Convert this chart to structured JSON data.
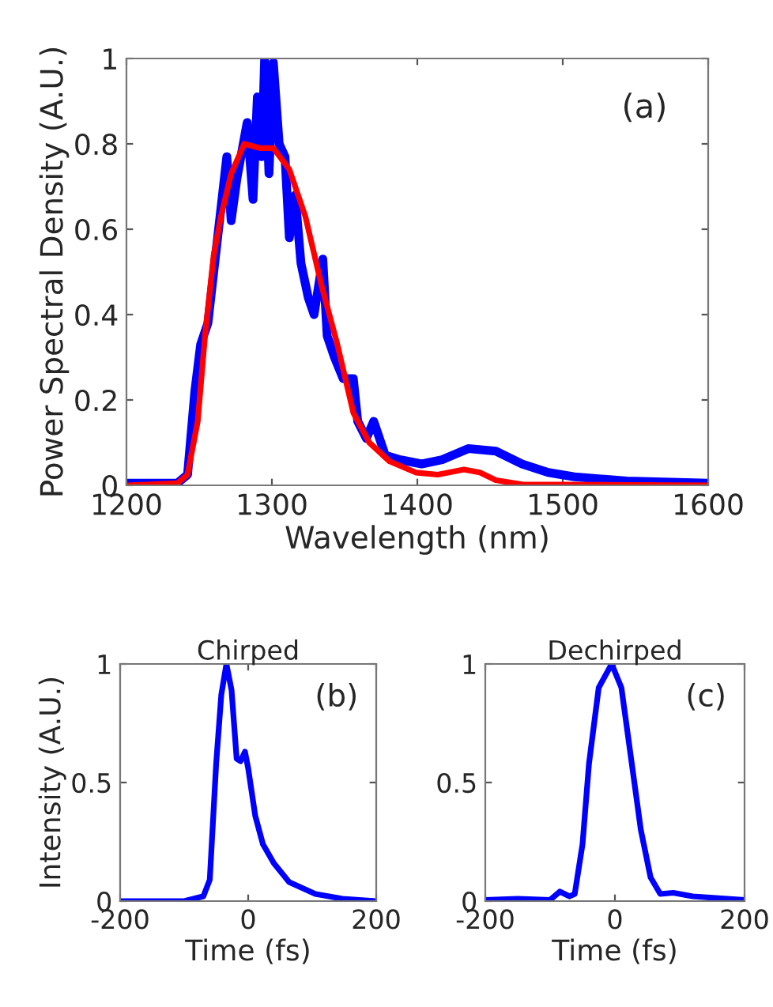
{
  "chart_data": [
    {
      "type": "line",
      "xlabel": "Wavelength (nm)",
      "ylabel": "Power Spectral Density (A.U.)",
      "annotations": [
        "(a)"
      ],
      "xlim": [
        1200,
        1600
      ],
      "ylim": [
        0,
        1
      ],
      "xticks": [
        1200,
        1300,
        1400,
        1500,
        1600
      ],
      "yticks": [
        0,
        0.2,
        0.4,
        0.6,
        0.8,
        1
      ],
      "grid": false,
      "legend": false,
      "line_style": "solid",
      "series": [
        {
          "color": "#0000ff",
          "x": [
            1200,
            1220,
            1235,
            1242,
            1247,
            1251,
            1256,
            1263,
            1269,
            1272,
            1276,
            1283,
            1287,
            1290,
            1293,
            1295,
            1298,
            1301,
            1305,
            1309,
            1312,
            1316,
            1320,
            1325,
            1329,
            1335,
            1338,
            1343,
            1349,
            1356,
            1359,
            1365,
            1370,
            1378,
            1388,
            1403,
            1417,
            1435,
            1454,
            1472,
            1490,
            1508,
            1544,
            1600
          ],
          "values": [
            0.005,
            0.005,
            0.005,
            0.025,
            0.22,
            0.33,
            0.38,
            0.59,
            0.77,
            0.62,
            0.72,
            0.85,
            0.67,
            0.91,
            0.77,
            1.0,
            0.73,
            0.99,
            0.8,
            0.77,
            0.58,
            0.68,
            0.52,
            0.44,
            0.4,
            0.53,
            0.35,
            0.3,
            0.25,
            0.25,
            0.15,
            0.11,
            0.15,
            0.07,
            0.06,
            0.05,
            0.06,
            0.086,
            0.08,
            0.05,
            0.03,
            0.02,
            0.01,
            0.005
          ]
        },
        {
          "color": "#ff0000",
          "x": [
            1200,
            1235,
            1242,
            1249,
            1254,
            1260,
            1265,
            1272,
            1281,
            1292,
            1301,
            1312,
            1323,
            1334,
            1345,
            1356,
            1367,
            1381,
            1399,
            1414,
            1432,
            1443,
            1454,
            1472,
            1600
          ],
          "values": [
            0,
            0.005,
            0.025,
            0.15,
            0.35,
            0.54,
            0.63,
            0.73,
            0.8,
            0.79,
            0.79,
            0.74,
            0.63,
            0.47,
            0.33,
            0.17,
            0.1,
            0.056,
            0.03,
            0.025,
            0.037,
            0.03,
            0.012,
            0.002,
            0
          ]
        }
      ]
    },
    {
      "type": "line",
      "title": "Chirped",
      "xlabel": "Time (fs)",
      "ylabel": "Intensity (A.U.)",
      "annotations": [
        "(b)"
      ],
      "xlim": [
        -200,
        200
      ],
      "ylim": [
        0,
        1
      ],
      "xticks": [
        -200,
        0,
        200
      ],
      "yticks": [
        0,
        0.5,
        1
      ],
      "grid": false,
      "legend": false,
      "line_style": "solid",
      "series": [
        {
          "color": "#0000ff",
          "x": [
            -200,
            -100,
            -70,
            -60,
            -50,
            -42,
            -34,
            -26,
            -18,
            -12,
            -5,
            0,
            11,
            23,
            40,
            64,
            105,
            147,
            200
          ],
          "values": [
            0,
            0,
            0.02,
            0.09,
            0.58,
            0.87,
            1.0,
            0.89,
            0.6,
            0.59,
            0.63,
            0.56,
            0.36,
            0.24,
            0.16,
            0.08,
            0.03,
            0.01,
            0
          ]
        }
      ]
    },
    {
      "type": "line",
      "title": "Dechirped",
      "xlabel": "Time (fs)",
      "annotations": [
        "(c)"
      ],
      "xlim": [
        -200,
        200
      ],
      "ylim": [
        0,
        1
      ],
      "xticks": [
        -200,
        0,
        200
      ],
      "yticks": [
        0,
        0.5,
        1
      ],
      "grid": false,
      "legend": false,
      "line_style": "solid",
      "series": [
        {
          "color": "#0000ff",
          "x": [
            -200,
            -150,
            -100,
            -85,
            -70,
            -62,
            -50,
            -40,
            -25,
            -5,
            10,
            25,
            40,
            55,
            70,
            90,
            120,
            200
          ],
          "values": [
            0.005,
            0.01,
            0.005,
            0.04,
            0.02,
            0.03,
            0.24,
            0.58,
            0.9,
            1.0,
            0.9,
            0.6,
            0.3,
            0.1,
            0.03,
            0.035,
            0.02,
            0.005
          ]
        }
      ]
    }
  ]
}
